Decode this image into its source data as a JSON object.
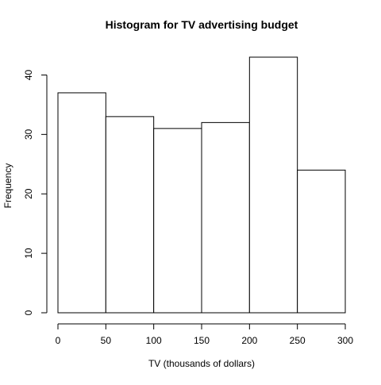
{
  "chart_data": {
    "type": "bar",
    "title": "Histogram for TV advertising budget",
    "xlabel": "TV (thousands of dollars)",
    "ylabel": "Frequency",
    "bins": [
      {
        "start": 0,
        "end": 50,
        "count": 37
      },
      {
        "start": 50,
        "end": 100,
        "count": 33
      },
      {
        "start": 100,
        "end": 150,
        "count": 31
      },
      {
        "start": 150,
        "end": 200,
        "count": 32
      },
      {
        "start": 200,
        "end": 250,
        "count": 43
      },
      {
        "start": 250,
        "end": 300,
        "count": 24
      }
    ],
    "xlim": [
      0,
      300
    ],
    "ylim": [
      0,
      43
    ],
    "xticks": [
      0,
      50,
      100,
      150,
      200,
      250,
      300
    ],
    "yticks": [
      0,
      10,
      20,
      30,
      40
    ],
    "grid": false,
    "colors": {
      "bar_fill": "#ffffff",
      "bar_stroke": "#000000"
    }
  }
}
